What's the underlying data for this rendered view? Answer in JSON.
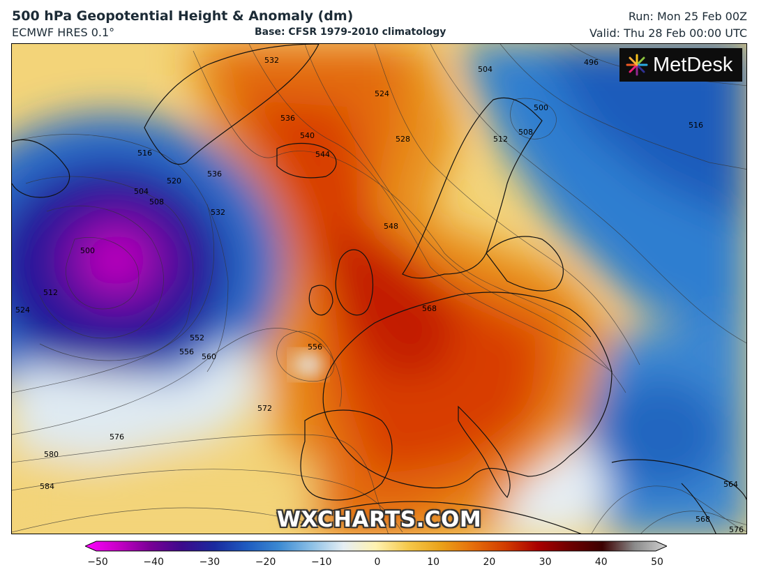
{
  "header": {
    "title": "500 hPa Geopotential Height & Anomaly (dm)",
    "model": "ECMWF HRES 0.1°",
    "base": "Base: CFSR 1979-2010 climatology",
    "run": "Run: Mon 25 Feb 00Z",
    "valid": "Valid: Thu 28 Feb 00:00 UTC"
  },
  "logo": {
    "text": "MetDesk",
    "icon": "metdesk-flower-icon"
  },
  "watermark": "WXCHARTS.COM",
  "contour_labels": [
    "532",
    "524",
    "504",
    "496",
    "500",
    "508",
    "512",
    "516",
    "536",
    "540",
    "544",
    "528",
    "520",
    "516",
    "504",
    "508",
    "536",
    "532",
    "500",
    "512",
    "524",
    "548",
    "568",
    "552",
    "556",
    "560",
    "556",
    "572",
    "576",
    "580",
    "584",
    "564",
    "568",
    "576"
  ],
  "colorbar": {
    "ticks": [
      "−50",
      "−40",
      "−30",
      "−20",
      "−10",
      "0",
      "10",
      "20",
      "30",
      "40",
      "50"
    ],
    "min": -50,
    "max": 50,
    "colors": [
      "#ff00ff",
      "#c800c8",
      "#7a0096",
      "#3c0a8c",
      "#1a2a9e",
      "#1e5bc0",
      "#3c8ad2",
      "#8cc0e6",
      "#e6eef4",
      "#fff2b0",
      "#f5c84a",
      "#eaa21a",
      "#e66e0a",
      "#d23c00",
      "#aa0000",
      "#6e0000",
      "#3c0000",
      "#8a8a8a",
      "#d2d2d2"
    ]
  }
}
